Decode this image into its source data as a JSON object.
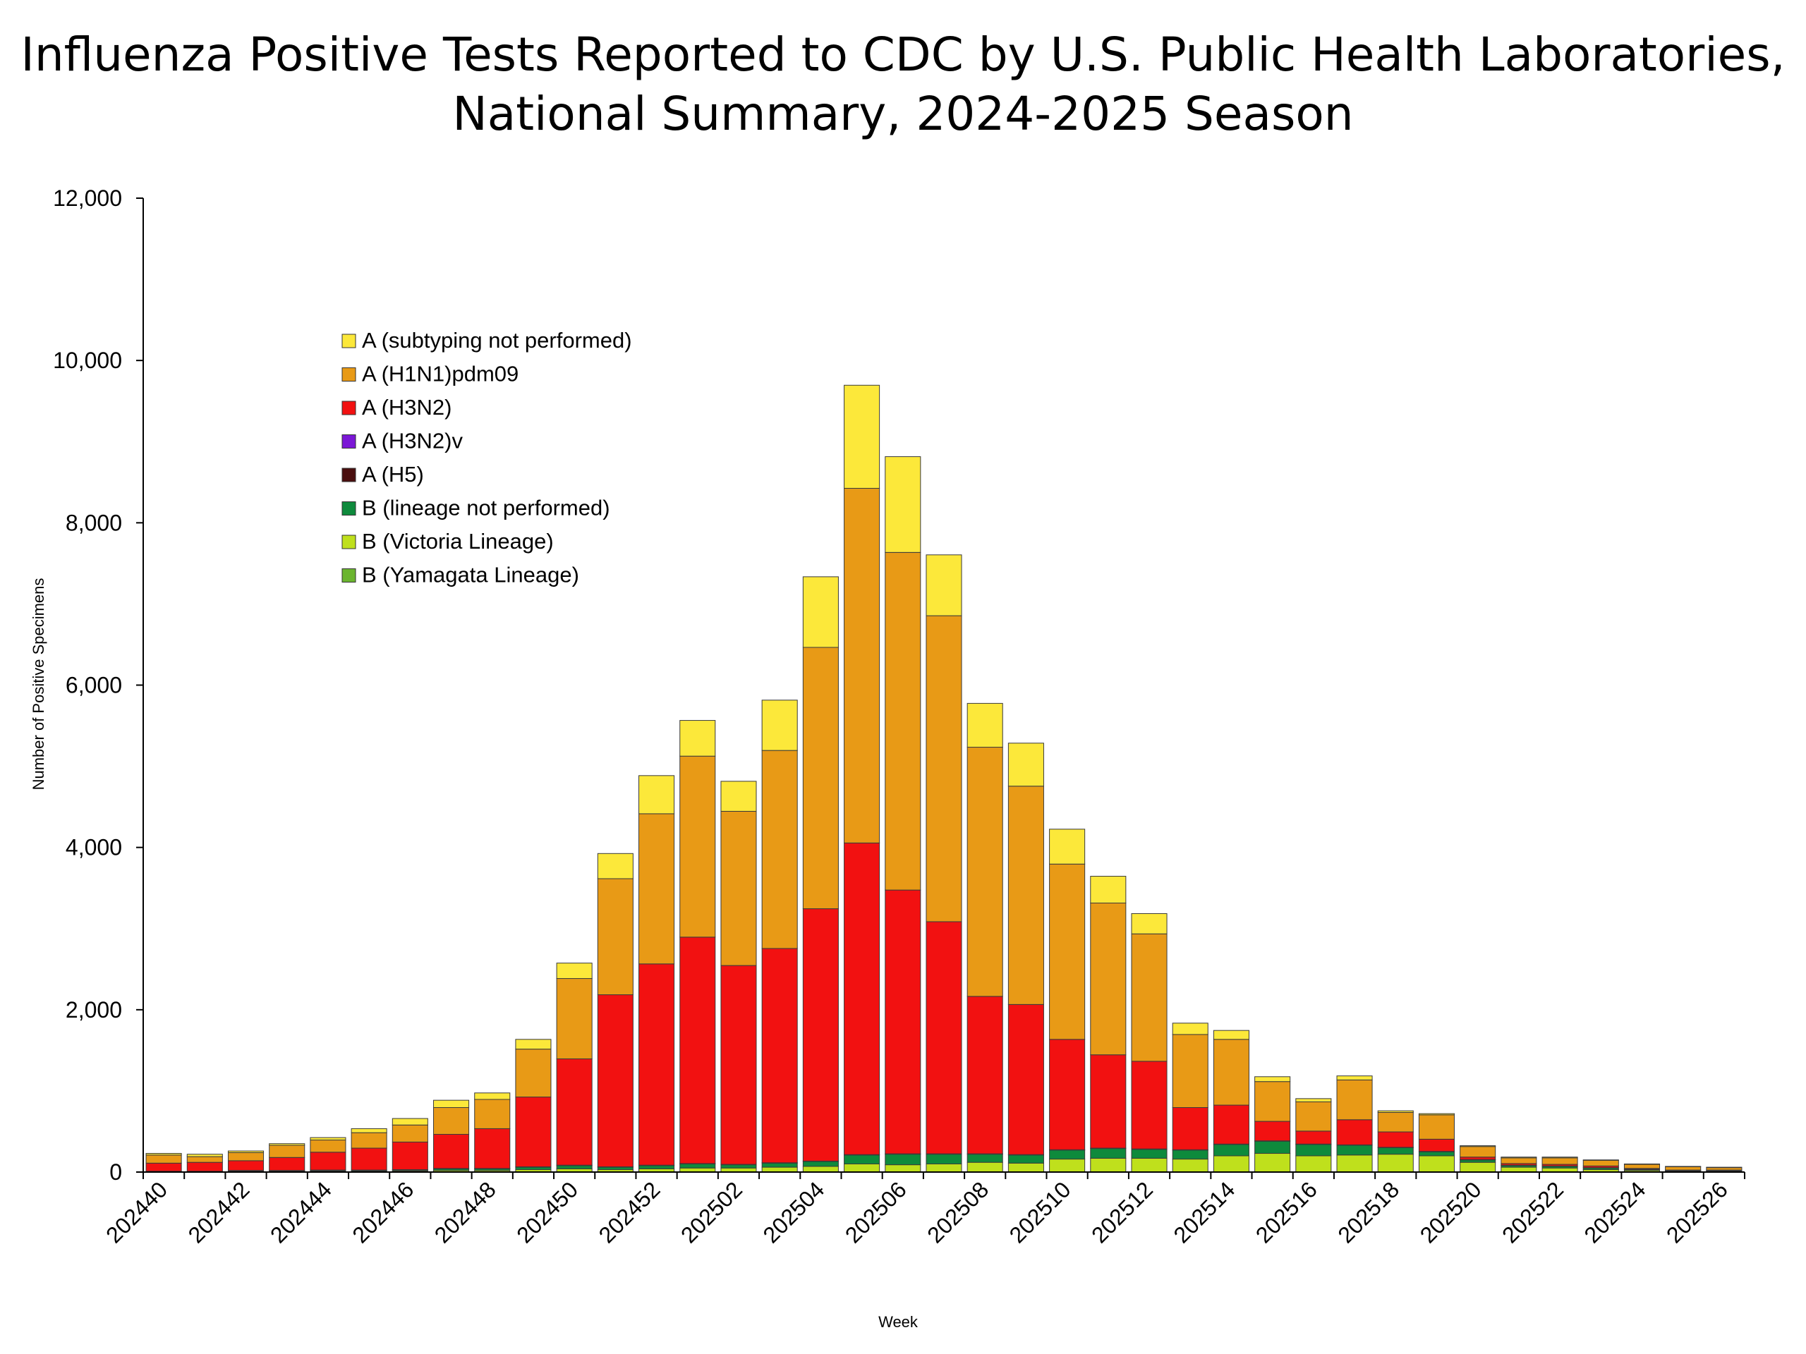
{
  "chart_data": {
    "type": "bar",
    "stacked": true,
    "title_line1": "Influenza Positive Tests Reported to CDC by U.S. Public Health Laboratories,",
    "title_line2": "National Summary, 2024-2025 Season",
    "xlabel": "Week",
    "ylabel": "Number of Positive Specimens",
    "ylim": [
      0,
      12000
    ],
    "yticks": [
      0,
      2000,
      4000,
      6000,
      8000,
      10000,
      12000
    ],
    "ytick_labels": [
      "0",
      "2,000",
      "4,000",
      "6,000",
      "8,000",
      "10,000",
      "12,000"
    ],
    "legend_position": "top-left",
    "categories": [
      "202440",
      "202441",
      "202442",
      "202443",
      "202444",
      "202445",
      "202446",
      "202447",
      "202448",
      "202449",
      "202450",
      "202451",
      "202452",
      "202501",
      "202502",
      "202503",
      "202504",
      "202505",
      "202506",
      "202507",
      "202508",
      "202509",
      "202510",
      "202511",
      "202512",
      "202513",
      "202514",
      "202515",
      "202516",
      "202517",
      "202518",
      "202519",
      "202520",
      "202521",
      "202522",
      "202523",
      "202524",
      "202525",
      "202526"
    ],
    "xtick_labels": [
      "202440",
      "202442",
      "202444",
      "202446",
      "202448",
      "202450",
      "202452",
      "202502",
      "202504",
      "202506",
      "202508",
      "202510",
      "202512",
      "202514",
      "202516",
      "202518",
      "202520",
      "202522",
      "202524",
      "202526"
    ],
    "series": [
      {
        "name": "B (Yamagata Lineage)",
        "color": "#6BB52F",
        "values": [
          0,
          0,
          0,
          0,
          0,
          0,
          0,
          0,
          0,
          0,
          0,
          0,
          0,
          0,
          0,
          0,
          0,
          0,
          0,
          0,
          0,
          0,
          0,
          0,
          0,
          0,
          0,
          0,
          0,
          0,
          0,
          0,
          0,
          0,
          0,
          0,
          0,
          0,
          0
        ]
      },
      {
        "name": "B (Victoria Lineage)",
        "color": "#BFE01C",
        "values": [
          5,
          5,
          10,
          10,
          10,
          10,
          15,
          20,
          20,
          30,
          40,
          30,
          40,
          50,
          50,
          60,
          70,
          100,
          90,
          100,
          120,
          110,
          160,
          170,
          170,
          160,
          200,
          230,
          200,
          210,
          220,
          200,
          120,
          60,
          50,
          30,
          20,
          10,
          10
        ]
      },
      {
        "name": "B (lineage not performed)",
        "color": "#0E8A3C",
        "values": [
          5,
          5,
          5,
          5,
          10,
          10,
          10,
          20,
          20,
          30,
          40,
          30,
          40,
          50,
          40,
          50,
          60,
          110,
          130,
          120,
          100,
          100,
          110,
          120,
          110,
          110,
          140,
          150,
          140,
          120,
          80,
          50,
          30,
          20,
          20,
          20,
          10,
          5,
          5
        ]
      },
      {
        "name": "A (H5)",
        "color": "#4A0E0E",
        "values": [
          0,
          0,
          5,
          5,
          5,
          5,
          5,
          5,
          5,
          5,
          5,
          5,
          5,
          5,
          5,
          5,
          5,
          5,
          5,
          5,
          5,
          5,
          5,
          5,
          5,
          5,
          5,
          5,
          5,
          5,
          5,
          5,
          5,
          5,
          5,
          5,
          5,
          5,
          5
        ]
      },
      {
        "name": "A (H3N2)v",
        "color": "#7B17D6",
        "values": [
          0,
          0,
          0,
          0,
          0,
          0,
          0,
          0,
          0,
          0,
          0,
          0,
          0,
          0,
          0,
          0,
          0,
          0,
          0,
          0,
          0,
          0,
          0,
          0,
          0,
          0,
          0,
          0,
          0,
          0,
          0,
          0,
          0,
          0,
          0,
          0,
          0,
          0,
          0
        ]
      },
      {
        "name": "A (H3N2)",
        "color": "#F21111",
        "values": [
          100,
          110,
          120,
          160,
          220,
          270,
          340,
          420,
          490,
          860,
          1310,
          2120,
          2480,
          2790,
          2450,
          2640,
          3110,
          3840,
          3250,
          2860,
          1940,
          1850,
          1360,
          1150,
          1080,
          520,
          480,
          240,
          160,
          310,
          190,
          150,
          30,
          20,
          20,
          20,
          10,
          5,
          5
        ]
      },
      {
        "name": "A (H1N1)pdm09",
        "color": "#E89A16",
        "values": [
          100,
          70,
          100,
          150,
          150,
          190,
          210,
          330,
          360,
          590,
          990,
          1430,
          1850,
          2230,
          1900,
          2440,
          3220,
          4370,
          4160,
          3770,
          3070,
          2690,
          2160,
          1870,
          1570,
          900,
          810,
          490,
          360,
          490,
          240,
          300,
          130,
          70,
          80,
          70,
          50,
          40,
          30
        ]
      },
      {
        "name": "A (subtyping not performed)",
        "color": "#FCE83A",
        "values": [
          20,
          30,
          20,
          20,
          30,
          50,
          80,
          90,
          80,
          120,
          190,
          310,
          470,
          440,
          370,
          620,
          870,
          1270,
          1180,
          750,
          540,
          530,
          430,
          330,
          250,
          140,
          110,
          60,
          40,
          50,
          20,
          15,
          10,
          10,
          10,
          5,
          5,
          5,
          5
        ]
      }
    ]
  }
}
